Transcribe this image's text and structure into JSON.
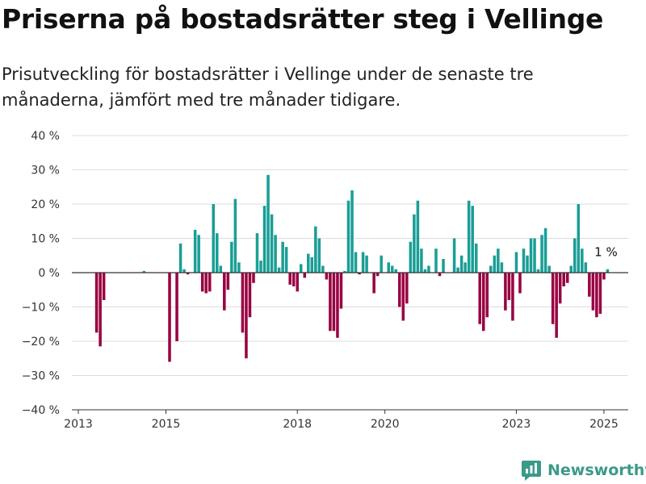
{
  "header": {
    "title": "Priserna på bostadsrätter steg i Vellinge",
    "subtitle": "Prisutveckling för bostadsrätter i Vellinge under de senaste tre månaderna, jämfört med tre månader tidigare."
  },
  "brand": {
    "name": "Newsworthy"
  },
  "colors": {
    "positive": "#1a9e96",
    "negative": "#990042",
    "grid": "#dddddd",
    "axis": "#333333"
  },
  "chart_data": {
    "type": "bar",
    "x_unit": "month",
    "x_start": "2013-01",
    "x_end": "2025-05",
    "ylim": [
      -40,
      40
    ],
    "y_ticks": [
      {
        "value": 40,
        "label": "40 %"
      },
      {
        "value": 30,
        "label": "30 %"
      },
      {
        "value": 20,
        "label": "20 %"
      },
      {
        "value": 10,
        "label": "10 %"
      },
      {
        "value": 0,
        "label": "0 %"
      },
      {
        "value": -10,
        "label": "−10 %"
      },
      {
        "value": -20,
        "label": "−20 %"
      },
      {
        "value": -30,
        "label": "−30 %"
      },
      {
        "value": -40,
        "label": "−40 %"
      }
    ],
    "x_ticks": [
      {
        "date": "2013-01",
        "label": "2013"
      },
      {
        "date": "2015-01",
        "label": "2015"
      },
      {
        "date": "2018-01",
        "label": "2018"
      },
      {
        "date": "2020-01",
        "label": "2020"
      },
      {
        "date": "2023-01",
        "label": "2023"
      },
      {
        "date": "2025-01",
        "label": "2025"
      }
    ],
    "annotation": {
      "date": "2025-02",
      "label": "1 %"
    },
    "points": [
      [
        "2013-06",
        -17.5
      ],
      [
        "2013-07",
        -21.5
      ],
      [
        "2013-08",
        -8
      ],
      [
        "2014-07",
        0.5
      ],
      [
        "2015-02",
        -26
      ],
      [
        "2015-04",
        -20
      ],
      [
        "2015-05",
        8.5
      ],
      [
        "2015-06",
        1
      ],
      [
        "2015-07",
        -0.5
      ],
      [
        "2015-09",
        12.5
      ],
      [
        "2015-10",
        11
      ],
      [
        "2015-11",
        -5.5
      ],
      [
        "2015-12",
        -6
      ],
      [
        "2016-01",
        -5.5
      ],
      [
        "2016-02",
        20
      ],
      [
        "2016-03",
        11.5
      ],
      [
        "2016-04",
        2
      ],
      [
        "2016-05",
        -11
      ],
      [
        "2016-06",
        -5
      ],
      [
        "2016-07",
        9
      ],
      [
        "2016-08",
        21.5
      ],
      [
        "2016-09",
        3
      ],
      [
        "2016-10",
        -17.5
      ],
      [
        "2016-11",
        -25
      ],
      [
        "2016-12",
        -13
      ],
      [
        "2017-01",
        -3
      ],
      [
        "2017-02",
        11.5
      ],
      [
        "2017-03",
        3.5
      ],
      [
        "2017-04",
        19.5
      ],
      [
        "2017-05",
        28.5
      ],
      [
        "2017-06",
        17
      ],
      [
        "2017-07",
        11
      ],
      [
        "2017-08",
        1.5
      ],
      [
        "2017-09",
        9
      ],
      [
        "2017-10",
        7.5
      ],
      [
        "2017-11",
        -3.5
      ],
      [
        "2017-12",
        -4
      ],
      [
        "2018-01",
        -5.5
      ],
      [
        "2018-02",
        2.5
      ],
      [
        "2018-03",
        -1.5
      ],
      [
        "2018-04",
        5.5
      ],
      [
        "2018-05",
        4.5
      ],
      [
        "2018-06",
        13.5
      ],
      [
        "2018-07",
        10
      ],
      [
        "2018-08",
        2
      ],
      [
        "2018-09",
        -2
      ],
      [
        "2018-10",
        -17
      ],
      [
        "2018-11",
        -17
      ],
      [
        "2018-12",
        -19
      ],
      [
        "2019-01",
        -10.5
      ],
      [
        "2019-02",
        0.5
      ],
      [
        "2019-03",
        21
      ],
      [
        "2019-04",
        24
      ],
      [
        "2019-05",
        6
      ],
      [
        "2019-06",
        -0.5
      ],
      [
        "2019-07",
        6
      ],
      [
        "2019-08",
        5
      ],
      [
        "2019-10",
        -6
      ],
      [
        "2019-11",
        -1
      ],
      [
        "2019-12",
        5
      ],
      [
        "2020-02",
        3
      ],
      [
        "2020-03",
        2
      ],
      [
        "2020-04",
        1
      ],
      [
        "2020-05",
        -10
      ],
      [
        "2020-06",
        -14
      ],
      [
        "2020-07",
        -9
      ],
      [
        "2020-08",
        9
      ],
      [
        "2020-09",
        17
      ],
      [
        "2020-10",
        21
      ],
      [
        "2020-11",
        7
      ],
      [
        "2020-12",
        1
      ],
      [
        "2021-01",
        2
      ],
      [
        "2021-03",
        7
      ],
      [
        "2021-04",
        -1
      ],
      [
        "2021-05",
        4
      ],
      [
        "2021-08",
        10
      ],
      [
        "2021-09",
        1.5
      ],
      [
        "2021-10",
        5
      ],
      [
        "2021-11",
        3
      ],
      [
        "2021-12",
        21
      ],
      [
        "2022-01",
        19.5
      ],
      [
        "2022-02",
        8.5
      ],
      [
        "2022-03",
        -15
      ],
      [
        "2022-04",
        -17
      ],
      [
        "2022-05",
        -13
      ],
      [
        "2022-06",
        2
      ],
      [
        "2022-07",
        5
      ],
      [
        "2022-08",
        7
      ],
      [
        "2022-09",
        3
      ],
      [
        "2022-10",
        -11
      ],
      [
        "2022-11",
        -8
      ],
      [
        "2022-12",
        -14
      ],
      [
        "2023-01",
        6
      ],
      [
        "2023-02",
        -6
      ],
      [
        "2023-03",
        7
      ],
      [
        "2023-04",
        5
      ],
      [
        "2023-05",
        10
      ],
      [
        "2023-06",
        10
      ],
      [
        "2023-07",
        1
      ],
      [
        "2023-08",
        11
      ],
      [
        "2023-09",
        13
      ],
      [
        "2023-10",
        2
      ],
      [
        "2023-11",
        -15
      ],
      [
        "2023-12",
        -19
      ],
      [
        "2024-01",
        -9
      ],
      [
        "2024-02",
        -4
      ],
      [
        "2024-03",
        -3
      ],
      [
        "2024-04",
        2
      ],
      [
        "2024-05",
        10
      ],
      [
        "2024-06",
        20
      ],
      [
        "2024-07",
        7
      ],
      [
        "2024-08",
        3
      ],
      [
        "2024-09",
        -7
      ],
      [
        "2024-10",
        -11
      ],
      [
        "2024-11",
        -13
      ],
      [
        "2024-12",
        -12
      ],
      [
        "2025-01",
        -2
      ],
      [
        "2025-02",
        1
      ]
    ]
  }
}
